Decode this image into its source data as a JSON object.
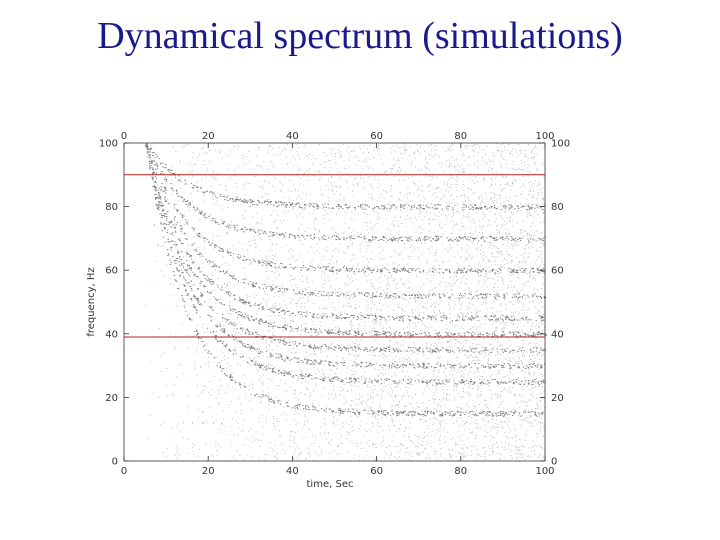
{
  "slide": {
    "title": "Dynamical spectrum (simulations)"
  },
  "colors": {
    "title": "#1a1a8c",
    "reference_line": "#b22222",
    "ink": "#222222"
  },
  "chart_data": {
    "type": "heatmap",
    "title": "",
    "xlabel": "time, Sec",
    "ylabel": "frequency, Hz",
    "xlim": [
      0,
      100
    ],
    "ylim": [
      0,
      100
    ],
    "xticks": [
      0,
      20,
      40,
      60,
      80,
      100
    ],
    "yticks": [
      0,
      20,
      40,
      60,
      80,
      100
    ],
    "xtick_labels_top": [
      "0",
      "20",
      "40",
      "60",
      "80",
      "100"
    ],
    "xtick_labels_bottom": [
      "0",
      "20",
      "40",
      "60",
      "80",
      "100"
    ],
    "ytick_labels_left": [
      "0",
      "20",
      "40",
      "60",
      "80",
      "100"
    ],
    "ytick_labels_right": [
      "0",
      "20",
      "40",
      "60",
      "80",
      "100"
    ],
    "grid": false,
    "colormap": "grayscale (white = low, black = high)",
    "reference_lines": [
      {
        "axis": "y",
        "value": 90,
        "color": "#b22222"
      },
      {
        "axis": "y",
        "value": 39,
        "color": "#b22222"
      }
    ],
    "ridges_asymptotic_frequency_hz": [
      15,
      25,
      30,
      35,
      40,
      45,
      52,
      60,
      70,
      80
    ],
    "ridge_onset_time_s": 5,
    "ridge_decay_time_s": 10
  }
}
